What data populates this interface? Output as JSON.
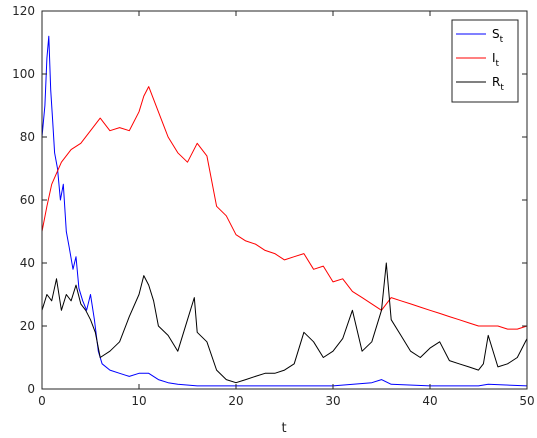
{
  "chart_data": {
    "type": "line",
    "title": "",
    "xlabel": "t",
    "ylabel": "",
    "xlim": [
      0,
      50
    ],
    "ylim": [
      0,
      120
    ],
    "xticks": [
      0,
      10,
      20,
      30,
      40,
      50
    ],
    "yticks": [
      0,
      20,
      40,
      60,
      80,
      100,
      120
    ],
    "grid": false,
    "legend_position": "top-right",
    "series": [
      {
        "name": "St",
        "legend_main": "S",
        "legend_sub": "t",
        "color": "#0000ff",
        "x": [
          0,
          0.3,
          0.5,
          0.7,
          0.9,
          1.1,
          1.3,
          1.6,
          1.9,
          2.2,
          2.5,
          2.8,
          3.2,
          3.5,
          3.8,
          4.2,
          4.6,
          5.0,
          5.4,
          5.8,
          6.2,
          7,
          8,
          9,
          10,
          11,
          12,
          13,
          14,
          16,
          18,
          20,
          25,
          30,
          34,
          35,
          36,
          40,
          45,
          46,
          50
        ],
        "y": [
          80,
          90,
          105,
          112,
          95,
          85,
          75,
          70,
          60,
          65,
          50,
          45,
          38,
          42,
          32,
          28,
          25,
          30,
          22,
          12,
          8,
          6,
          5,
          4,
          5,
          5,
          3,
          2,
          1.5,
          1,
          1,
          1,
          1,
          1,
          2,
          3,
          1.5,
          1,
          1,
          1.5,
          1
        ]
      },
      {
        "name": "It",
        "legend_main": "I",
        "legend_sub": "t",
        "color": "#ff0000",
        "x": [
          0,
          0.5,
          1,
          2,
          3,
          4,
          5,
          6,
          7,
          8,
          9,
          10,
          10.5,
          11,
          12,
          13,
          14,
          15,
          16,
          17,
          18,
          19,
          20,
          21,
          22,
          23,
          24,
          25,
          26,
          27,
          28,
          29,
          30,
          31,
          32,
          33,
          34,
          35,
          36,
          37,
          38,
          39,
          40,
          41,
          42,
          43,
          44,
          45,
          46,
          47,
          48,
          49,
          50
        ],
        "y": [
          50,
          58,
          65,
          72,
          76,
          78,
          82,
          86,
          82,
          83,
          82,
          88,
          93,
          96,
          88,
          80,
          75,
          72,
          78,
          74,
          58,
          55,
          49,
          47,
          46,
          44,
          43,
          41,
          42,
          43,
          38,
          39,
          34,
          35,
          31,
          29,
          27,
          25,
          29,
          28,
          27,
          26,
          25,
          24,
          23,
          22,
          21,
          20,
          20,
          20,
          19,
          19,
          20
        ]
      },
      {
        "name": "Rt",
        "legend_main": "R",
        "legend_sub": "t",
        "color": "#000000",
        "x": [
          0,
          0.5,
          1,
          1.5,
          2,
          2.5,
          3,
          3.5,
          4,
          4.5,
          5,
          5.5,
          6,
          7,
          8,
          9,
          10,
          10.5,
          11,
          11.5,
          12,
          13,
          14,
          15,
          15.7,
          16,
          17,
          18,
          19,
          20,
          21,
          22,
          23,
          24,
          25,
          26,
          27,
          28,
          29,
          30,
          31,
          32,
          33,
          34,
          35,
          35.5,
          36,
          37,
          38,
          39,
          40,
          41,
          42,
          43,
          44,
          45,
          45.5,
          46,
          47,
          48,
          49,
          50
        ],
        "y": [
          25,
          30,
          28,
          35,
          25,
          30,
          28,
          33,
          27,
          25,
          22,
          18,
          10,
          12,
          15,
          23,
          30,
          36,
          33,
          28,
          20,
          17,
          12,
          22,
          29,
          18,
          15,
          6,
          3,
          2,
          3,
          4,
          5,
          5,
          6,
          8,
          18,
          15,
          10,
          12,
          16,
          25,
          12,
          15,
          25,
          40,
          22,
          17,
          12,
          10,
          13,
          15,
          9,
          8,
          7,
          6,
          8,
          17,
          7,
          8,
          10,
          16
        ]
      }
    ]
  }
}
